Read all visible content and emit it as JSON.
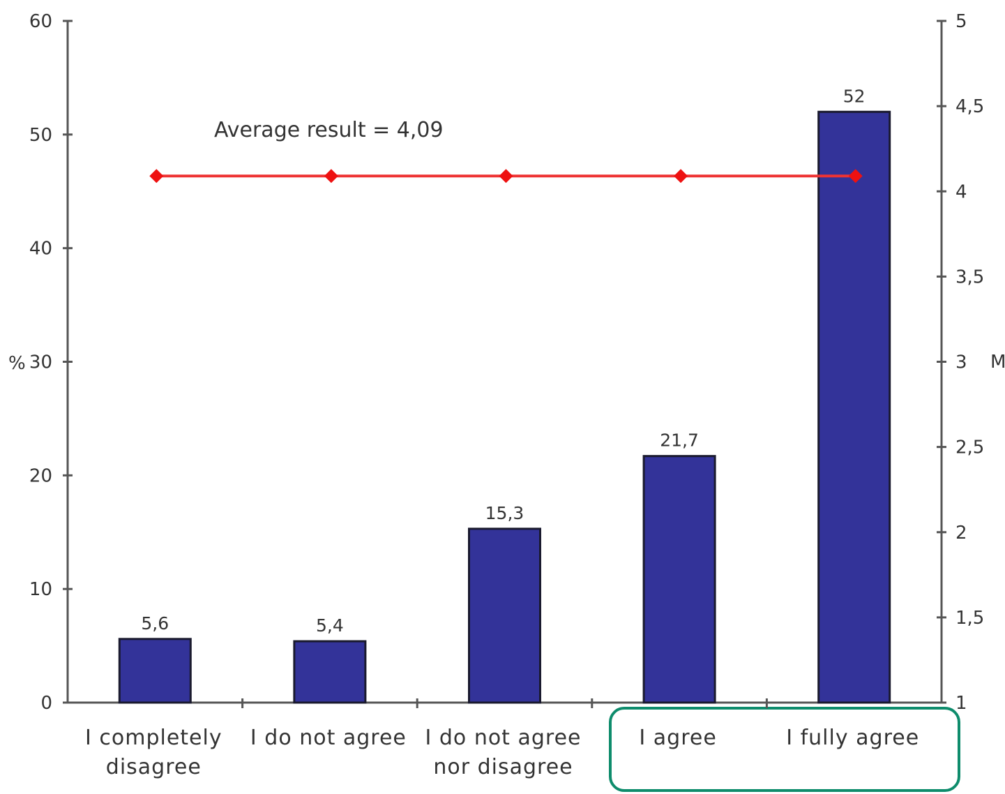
{
  "chart_data": {
    "type": "bar",
    "categories": [
      [
        "I completely",
        "disagree"
      ],
      [
        "I do not agree"
      ],
      [
        "I do not agree",
        "nor disagree"
      ],
      [
        "I agree"
      ],
      [
        "I fully agree"
      ]
    ],
    "series": [
      {
        "values": [
          5.6,
          5.4,
          15.3,
          21.7,
          52
        ],
        "value_labels": [
          "5,6",
          "5,4",
          "15,3",
          "21,7",
          "52"
        ]
      }
    ],
    "line_series": {
      "axis": "right",
      "values": [
        4.09,
        4.09,
        4.09,
        4.09,
        4.09
      ]
    },
    "annotation": "Average result = 4,09",
    "ylabel": "%",
    "y2label": "M",
    "ylim": [
      0,
      60
    ],
    "y2lim": [
      1,
      5
    ],
    "yticks": [
      "0",
      "10",
      "20",
      "30",
      "40",
      "50",
      "60"
    ],
    "y2ticks": [
      "1",
      "1,5",
      "2",
      "2,5",
      "3",
      "3,5",
      "4",
      "4,5",
      "5"
    ],
    "highlight": {
      "categories": [
        "I agree",
        "I fully agree"
      ],
      "color": "#0e8c6c"
    },
    "colors": {
      "bar": "#333399",
      "line": "#ee3333",
      "marker": "#ee1111"
    },
    "grid": false,
    "legend": "none"
  }
}
